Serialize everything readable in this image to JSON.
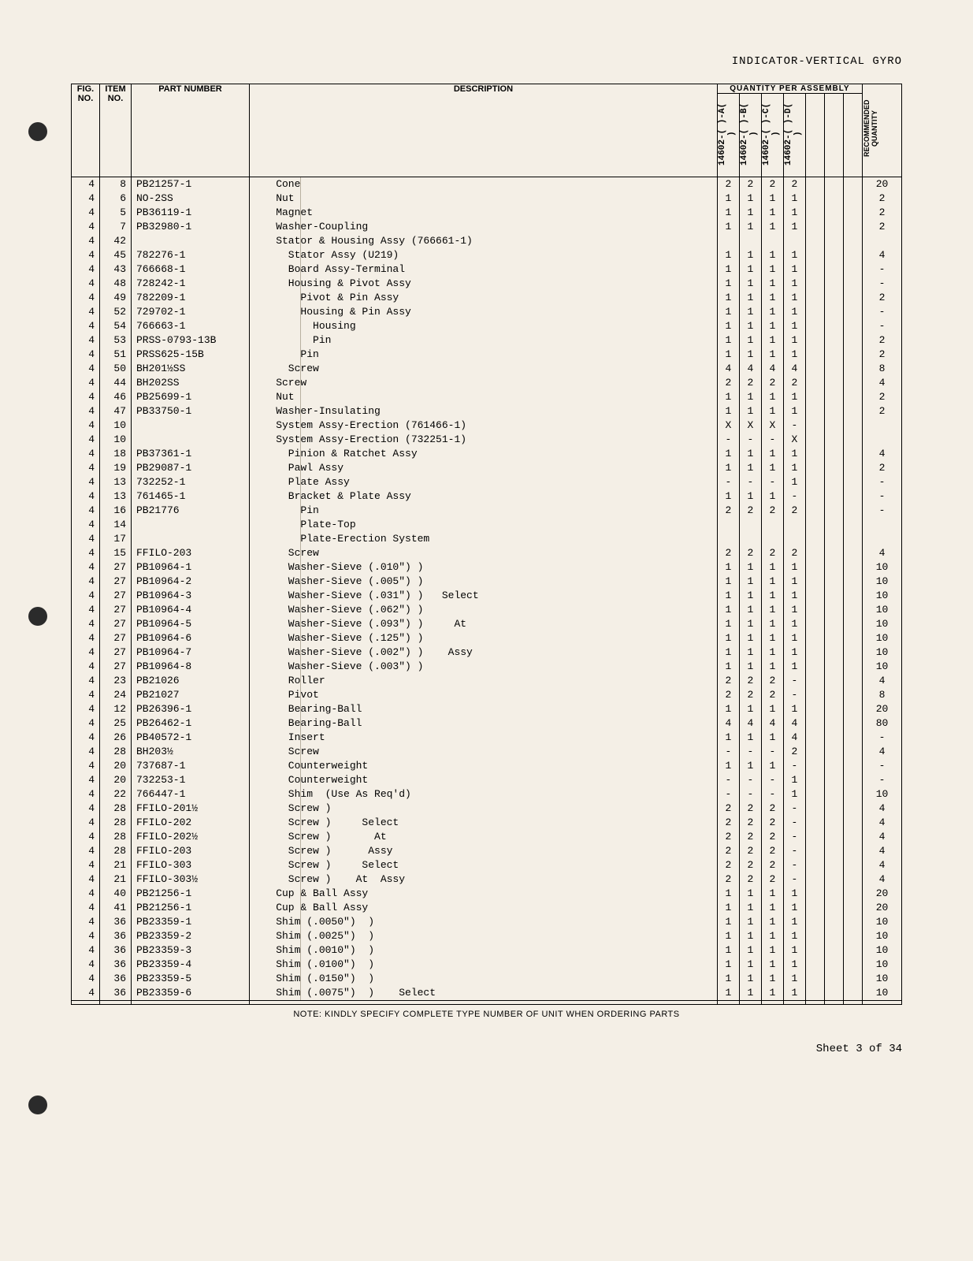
{
  "doc_title": "INDICATOR-VERTICAL GYRO",
  "headers": {
    "fig": "FIG.\nNO.",
    "item": "ITEM\nNO.",
    "part": "PART NUMBER",
    "desc": "DESCRIPTION",
    "qty_top": "QUANTITY PER ASSEMBLY",
    "rec": "RECOMMENDED\nQUANTITY",
    "cols": [
      "14602-( )-A( )",
      "14602-( )-B( )",
      "14602-( )-C( )",
      "14602-( )-D( )",
      "",
      "",
      ""
    ]
  },
  "bottom_note": "NOTE: KINDLY SPECIFY COMPLETE TYPE NUMBER OF UNIT WHEN ORDERING PARTS",
  "sheet": "Sheet 3 of 34",
  "rows": [
    {
      "f": "4",
      "i": "8",
      "p": "PB21257-1",
      "d": "    Cone",
      "q": [
        "2",
        "2",
        "2",
        "2"
      ],
      "r": "20"
    },
    {
      "f": "4",
      "i": "6",
      "p": "NO-2SS",
      "d": "    Nut",
      "q": [
        "1",
        "1",
        "1",
        "1"
      ],
      "r": "2"
    },
    {
      "f": "4",
      "i": "5",
      "p": "PB36119-1",
      "d": "    Magnet",
      "q": [
        "1",
        "1",
        "1",
        "1"
      ],
      "r": "2"
    },
    {
      "f": "4",
      "i": "7",
      "p": "PB32980-1",
      "d": "    Washer-Coupling",
      "q": [
        "1",
        "1",
        "1",
        "1"
      ],
      "r": "2"
    },
    {
      "f": "4",
      "i": "42",
      "p": "",
      "d": "    Stator & Housing Assy (766661-1)",
      "q": [
        "",
        "",
        "",
        ""
      ],
      "r": ""
    },
    {
      "f": "4",
      "i": "45",
      "p": "782276-1",
      "d": "      Stator Assy (U219)",
      "q": [
        "1",
        "1",
        "1",
        "1"
      ],
      "r": "4"
    },
    {
      "f": "4",
      "i": "43",
      "p": "766668-1",
      "d": "      Board Assy-Terminal",
      "q": [
        "1",
        "1",
        "1",
        "1"
      ],
      "r": "-"
    },
    {
      "f": "4",
      "i": "48",
      "p": "728242-1",
      "d": "      Housing & Pivot Assy",
      "q": [
        "1",
        "1",
        "1",
        "1"
      ],
      "r": "-"
    },
    {
      "f": "4",
      "i": "49",
      "p": "782209-1",
      "d": "        Pivot & Pin Assy",
      "q": [
        "1",
        "1",
        "1",
        "1"
      ],
      "r": "2"
    },
    {
      "f": "4",
      "i": "52",
      "p": "729702-1",
      "d": "        Housing & Pin Assy",
      "q": [
        "1",
        "1",
        "1",
        "1"
      ],
      "r": "-"
    },
    {
      "f": "4",
      "i": "54",
      "p": "766663-1",
      "d": "          Housing",
      "q": [
        "1",
        "1",
        "1",
        "1"
      ],
      "r": "-"
    },
    {
      "f": "4",
      "i": "53",
      "p": "PRSS-0793-13B",
      "d": "          Pin",
      "q": [
        "1",
        "1",
        "1",
        "1"
      ],
      "r": "2"
    },
    {
      "f": "4",
      "i": "51",
      "p": "PRSS625-15B",
      "d": "        Pin",
      "q": [
        "1",
        "1",
        "1",
        "1"
      ],
      "r": "2"
    },
    {
      "f": "4",
      "i": "50",
      "p": "BH201½SS",
      "d": "      Screw",
      "q": [
        "4",
        "4",
        "4",
        "4"
      ],
      "r": "8"
    },
    {
      "f": "4",
      "i": "44",
      "p": "BH202SS",
      "d": "    Screw",
      "q": [
        "2",
        "2",
        "2",
        "2"
      ],
      "r": "4"
    },
    {
      "f": "4",
      "i": "46",
      "p": "PB25699-1",
      "d": "    Nut",
      "q": [
        "1",
        "1",
        "1",
        "1"
      ],
      "r": "2"
    },
    {
      "f": "4",
      "i": "47",
      "p": "PB33750-1",
      "d": "    Washer-Insulating",
      "q": [
        "1",
        "1",
        "1",
        "1"
      ],
      "r": "2"
    },
    {
      "f": "4",
      "i": "10",
      "p": "",
      "d": "    System Assy-Erection (761466-1)",
      "q": [
        "X",
        "X",
        "X",
        "-"
      ],
      "r": ""
    },
    {
      "f": "4",
      "i": "10",
      "p": "",
      "d": "    System Assy-Erection (732251-1)",
      "q": [
        "-",
        "-",
        "-",
        "X"
      ],
      "r": ""
    },
    {
      "f": "4",
      "i": "18",
      "p": "PB37361-1",
      "d": "      Pinion & Ratchet Assy",
      "q": [
        "1",
        "1",
        "1",
        "1"
      ],
      "r": "4"
    },
    {
      "f": "4",
      "i": "19",
      "p": "PB29087-1",
      "d": "      Pawl Assy",
      "q": [
        "1",
        "1",
        "1",
        "1"
      ],
      "r": "2"
    },
    {
      "f": "4",
      "i": "13",
      "p": "732252-1",
      "d": "      Plate Assy",
      "q": [
        "-",
        "-",
        "-",
        "1"
      ],
      "r": "-"
    },
    {
      "f": "4",
      "i": "13",
      "p": "761465-1",
      "d": "      Bracket & Plate Assy",
      "q": [
        "1",
        "1",
        "1",
        "-"
      ],
      "r": "-"
    },
    {
      "f": "4",
      "i": "16",
      "p": "PB21776",
      "d": "        Pin",
      "q": [
        "2",
        "2",
        "2",
        "2"
      ],
      "r": "-"
    },
    {
      "f": "4",
      "i": "14",
      "p": "",
      "d": "        Plate-Top",
      "q": [
        "",
        "",
        "",
        ""
      ],
      "r": ""
    },
    {
      "f": "4",
      "i": "17",
      "p": "",
      "d": "        Plate-Erection System",
      "q": [
        "",
        "",
        "",
        ""
      ],
      "r": ""
    },
    {
      "f": "4",
      "i": "15",
      "p": "FFILO-203",
      "d": "      Screw",
      "q": [
        "2",
        "2",
        "2",
        "2"
      ],
      "r": "4"
    },
    {
      "f": "4",
      "i": "27",
      "p": "PB10964-1",
      "d": "      Washer-Sieve (.010\") )",
      "q": [
        "1",
        "1",
        "1",
        "1"
      ],
      "r": "10"
    },
    {
      "f": "4",
      "i": "27",
      "p": "PB10964-2",
      "d": "      Washer-Sieve (.005\") )",
      "q": [
        "1",
        "1",
        "1",
        "1"
      ],
      "r": "10"
    },
    {
      "f": "4",
      "i": "27",
      "p": "PB10964-3",
      "d": "      Washer-Sieve (.031\") )   Select",
      "q": [
        "1",
        "1",
        "1",
        "1"
      ],
      "r": "10"
    },
    {
      "f": "4",
      "i": "27",
      "p": "PB10964-4",
      "d": "      Washer-Sieve (.062\") )",
      "q": [
        "1",
        "1",
        "1",
        "1"
      ],
      "r": "10"
    },
    {
      "f": "4",
      "i": "27",
      "p": "PB10964-5",
      "d": "      Washer-Sieve (.093\") )     At",
      "q": [
        "1",
        "1",
        "1",
        "1"
      ],
      "r": "10"
    },
    {
      "f": "4",
      "i": "27",
      "p": "PB10964-6",
      "d": "      Washer-Sieve (.125\") )",
      "q": [
        "1",
        "1",
        "1",
        "1"
      ],
      "r": "10"
    },
    {
      "f": "4",
      "i": "27",
      "p": "PB10964-7",
      "d": "      Washer-Sieve (.002\") )    Assy",
      "q": [
        "1",
        "1",
        "1",
        "1"
      ],
      "r": "10"
    },
    {
      "f": "4",
      "i": "27",
      "p": "PB10964-8",
      "d": "      Washer-Sieve (.003\") )",
      "q": [
        "1",
        "1",
        "1",
        "1"
      ],
      "r": "10"
    },
    {
      "f": "4",
      "i": "23",
      "p": "PB21026",
      "d": "      Roller",
      "q": [
        "2",
        "2",
        "2",
        "-"
      ],
      "r": "4"
    },
    {
      "f": "4",
      "i": "24",
      "p": "PB21027",
      "d": "      Pivot",
      "q": [
        "2",
        "2",
        "2",
        "-"
      ],
      "r": "8"
    },
    {
      "f": "4",
      "i": "12",
      "p": "PB26396-1",
      "d": "      Bearing-Ball",
      "q": [
        "1",
        "1",
        "1",
        "1"
      ],
      "r": "20"
    },
    {
      "f": "4",
      "i": "25",
      "p": "PB26462-1",
      "d": "      Bearing-Ball",
      "q": [
        "4",
        "4",
        "4",
        "4"
      ],
      "r": "80"
    },
    {
      "f": "4",
      "i": "26",
      "p": "PB40572-1",
      "d": "      Insert",
      "q": [
        "1",
        "1",
        "1",
        "4"
      ],
      "r": "-"
    },
    {
      "f": "4",
      "i": "28",
      "p": "BH203½",
      "d": "      Screw",
      "q": [
        "-",
        "-",
        "-",
        "2"
      ],
      "r": "4"
    },
    {
      "f": "4",
      "i": "20",
      "p": "737687-1",
      "d": "      Counterweight",
      "q": [
        "1",
        "1",
        "1",
        "-"
      ],
      "r": "-"
    },
    {
      "f": "4",
      "i": "20",
      "p": "732253-1",
      "d": "      Counterweight",
      "q": [
        "-",
        "-",
        "-",
        "1"
      ],
      "r": "-"
    },
    {
      "f": "4",
      "i": "22",
      "p": "766447-1",
      "d": "      Shim  (Use As Req'd)",
      "q": [
        "-",
        "-",
        "-",
        "1"
      ],
      "r": "10"
    },
    {
      "f": "4",
      "i": "28",
      "p": "FFILO-201½",
      "d": "      Screw )",
      "q": [
        "2",
        "2",
        "2",
        "-"
      ],
      "r": "4"
    },
    {
      "f": "4",
      "i": "28",
      "p": "FFILO-202",
      "d": "      Screw )     Select",
      "q": [
        "2",
        "2",
        "2",
        "-"
      ],
      "r": "4"
    },
    {
      "f": "4",
      "i": "28",
      "p": "FFILO-202½",
      "d": "      Screw )       At",
      "q": [
        "2",
        "2",
        "2",
        "-"
      ],
      "r": "4"
    },
    {
      "f": "4",
      "i": "28",
      "p": "FFILO-203",
      "d": "      Screw )      Assy",
      "q": [
        "2",
        "2",
        "2",
        "-"
      ],
      "r": "4"
    },
    {
      "f": "4",
      "i": "21",
      "p": "FFILO-303",
      "d": "      Screw )     Select",
      "q": [
        "2",
        "2",
        "2",
        "-"
      ],
      "r": "4"
    },
    {
      "f": "4",
      "i": "21",
      "p": "FFILO-303½",
      "d": "      Screw )    At  Assy",
      "q": [
        "2",
        "2",
        "2",
        "-"
      ],
      "r": "4"
    },
    {
      "f": "4",
      "i": "40",
      "p": "PB21256-1",
      "d": "    Cup & Ball Assy",
      "q": [
        "1",
        "1",
        "1",
        "1"
      ],
      "r": "20"
    },
    {
      "f": "4",
      "i": "41",
      "p": "PB21256-1",
      "d": "    Cup & Ball Assy",
      "q": [
        "1",
        "1",
        "1",
        "1"
      ],
      "r": "20"
    },
    {
      "f": "4",
      "i": "36",
      "p": "PB23359-1",
      "d": "    Shim (.0050\")  )",
      "q": [
        "1",
        "1",
        "1",
        "1"
      ],
      "r": "10"
    },
    {
      "f": "4",
      "i": "36",
      "p": "PB23359-2",
      "d": "    Shim (.0025\")  )",
      "q": [
        "1",
        "1",
        "1",
        "1"
      ],
      "r": "10"
    },
    {
      "f": "4",
      "i": "36",
      "p": "PB23359-3",
      "d": "    Shim (.0010\")  )",
      "q": [
        "1",
        "1",
        "1",
        "1"
      ],
      "r": "10"
    },
    {
      "f": "4",
      "i": "36",
      "p": "PB23359-4",
      "d": "    Shim (.0100\")  )",
      "q": [
        "1",
        "1",
        "1",
        "1"
      ],
      "r": "10"
    },
    {
      "f": "4",
      "i": "36",
      "p": "PB23359-5",
      "d": "    Shim (.0150\")  )",
      "q": [
        "1",
        "1",
        "1",
        "1"
      ],
      "r": "10"
    },
    {
      "f": "4",
      "i": "36",
      "p": "PB23359-6",
      "d": "    Shim (.0075\")  )    Select",
      "q": [
        "1",
        "1",
        "1",
        "1"
      ],
      "r": "10"
    }
  ]
}
